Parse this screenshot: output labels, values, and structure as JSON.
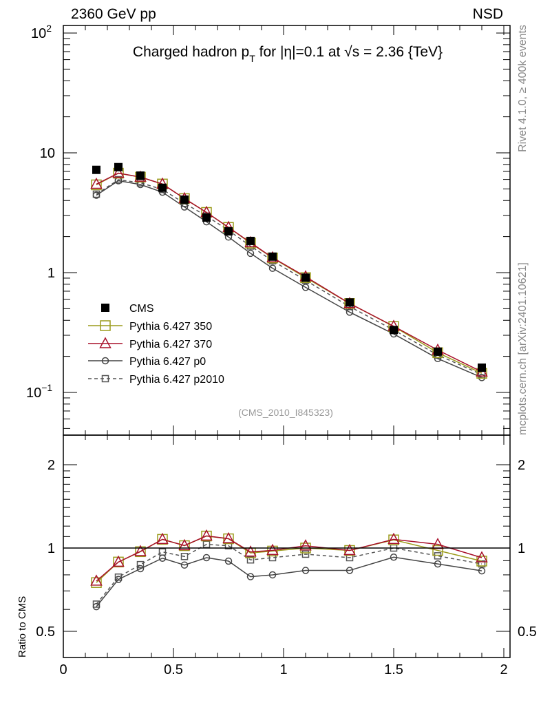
{
  "header": {
    "left": "2360 GeV pp",
    "right": "NSD"
  },
  "side_text": {
    "rivet": "Rivet 4.1.0, ≥ 400k events",
    "mcplots": "mcplots.cern.ch [arXiv:2401.10621]"
  },
  "analysis_id": "(CMS_2010_I845323)",
  "chart_data": {
    "type": "line",
    "title": "Charged hadron p_T for |η|=0.1 at √s = 2.36 {TeV}",
    "title_parts": {
      "a": "Charged hadron p",
      "sub": "T",
      "b": " for |η|=0.1 at √s = 2.36 {TeV}"
    },
    "xlabel": "",
    "ylabel": "",
    "ratio_ylabel": "Ratio to CMS",
    "xlim": [
      0,
      2.05
    ],
    "ylim": [
      0.044,
      115
    ],
    "yscale": "log",
    "ratio_ylim": [
      0.4,
      2.56
    ],
    "ratio_yscale": "log",
    "xticks": [
      {
        "v": 0,
        "label": "0"
      },
      {
        "v": 0.5,
        "label": "0.5"
      },
      {
        "v": 1,
        "label": "1"
      },
      {
        "v": 1.5,
        "label": "1.5"
      },
      {
        "v": 2,
        "label": "2"
      }
    ],
    "yticks": [
      {
        "v": 0.1,
        "base": "10",
        "exp": "−1"
      },
      {
        "v": 1,
        "base": "1",
        "exp": ""
      },
      {
        "v": 10,
        "base": "10",
        "exp": ""
      },
      {
        "v": 100,
        "base": "10",
        "exp": "2"
      }
    ],
    "ratio_yticks": [
      {
        "v": 0.5,
        "label": "0.5"
      },
      {
        "v": 1,
        "label": "1"
      },
      {
        "v": 2,
        "label": "2"
      }
    ],
    "legend_position": "lower-left",
    "x": [
      0.15,
      0.25,
      0.35,
      0.45,
      0.55,
      0.65,
      0.75,
      0.85,
      0.95,
      1.1,
      1.3,
      1.5,
      1.7,
      1.9
    ],
    "reference": {
      "name": "CMS",
      "color": "#000000",
      "values": [
        7.21,
        7.6,
        6.46,
        5.11,
        4.07,
        2.88,
        2.21,
        1.84,
        1.36,
        0.908,
        0.564,
        0.332,
        0.219,
        0.161
      ]
    },
    "series": [
      {
        "name": "Pythia 6.427 350",
        "color": "#9c9c1c",
        "marker": "square",
        "dashed": false,
        "ratio": [
          0.75,
          0.89,
          0.97,
          1.075,
          1.02,
          1.105,
          1.08,
          0.96,
          0.975,
          1.0,
          0.98,
          1.07,
          0.98,
          0.897
        ]
      },
      {
        "name": "Pythia 6.427 370",
        "color": "#a8102a",
        "marker": "triangle",
        "dashed": false,
        "ratio": [
          0.76,
          0.89,
          0.972,
          1.075,
          1.021,
          1.106,
          1.081,
          0.968,
          0.981,
          1.019,
          0.98,
          1.075,
          1.031,
          0.923
        ]
      },
      {
        "name": "Pythia 6.427 p0",
        "color": "#444444",
        "marker": "circle",
        "dashed": false,
        "ratio": [
          0.614,
          0.77,
          0.842,
          0.919,
          0.868,
          0.923,
          0.897,
          0.788,
          0.8,
          0.83,
          0.83,
          0.927,
          0.876,
          0.827
        ]
      },
      {
        "name": "Pythia 6.427 p2010",
        "color": "#555555",
        "marker": "square-small",
        "dashed": true,
        "ratio": [
          0.627,
          0.785,
          0.871,
          0.968,
          0.932,
          1.031,
          1.019,
          0.906,
          0.923,
          0.95,
          0.923,
          1.0,
          0.937,
          0.876
        ]
      }
    ]
  }
}
